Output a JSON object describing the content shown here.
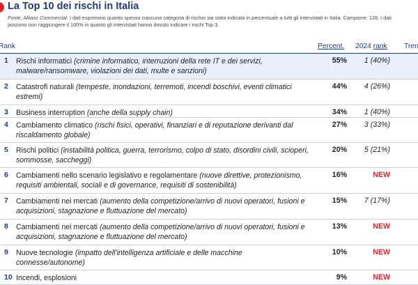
{
  "title": "La Top 10 dei rischi in Italia",
  "source": {
    "label": "Fonte: Allianz Commercial.",
    "text": " I dati esprimono quanto spesso ciascuna categoria di rischio sia stata indicata in percentuale a tutti gli intervistati in Italia.  Campione: 128. I dati possono non raggiungere il 100% in quanto gli intervistati hanno dovuto indicare i rischi Top 3."
  },
  "headers": {
    "rank": "Rank",
    "percent": "Percent.",
    "prev_year": "2024 ",
    "prev_rank": "rank",
    "trend": "Trend"
  },
  "colors": {
    "accent": "#1f3b73",
    "new_badge": "#e0202a",
    "title_dot": "#d62b2b",
    "highlight_row": "#e9f0fa"
  },
  "rows": [
    {
      "num": "1",
      "name": "Rischi informatici ",
      "detail": "(crimine informatico, interruzioni della rete IT e dei servizi, malware/ransomware, violazioni dei dati, multe e sanzioni)",
      "percent": "55%",
      "prev": "1 (40%)"
    },
    {
      "num": "2",
      "name": "Catastrofi naturali ",
      "detail": "(tempeste, inondazioni, terremoti, incendi boschivi, eventi climatici estremi)",
      "percent": "44%",
      "prev": "4 (26%)"
    },
    {
      "num": "3",
      "name": "Business interruption ",
      "detail": "(anche della supply chain)",
      "percent": "34%",
      "prev": "1 (40%)"
    },
    {
      "num": "4",
      "name": "Cambiamento climatico ",
      "detail": "(rischi fisici, operativi, finanziari e di reputazione derivanti dal riscaldamento globale)",
      "percent": "27%",
      "prev": "3 (33%)"
    },
    {
      "num": "5",
      "name": "Rischi politici ",
      "detail": "(instabilità politica, guerra, terrorismo, colpo di stato, disordini civili, scioperi, sommosse, saccheggi)",
      "percent": "20%",
      "prev": "5 (21%)"
    },
    {
      "num": "6",
      "name": "Cambiamenti nello scenario legislativo e regolamentare ",
      "detail": "(nuove direttive, protezionismo, requisiti ambientali, sociali e di governance, requisiti di sostenibilità)",
      "percent": "16%",
      "prev": "NEW"
    },
    {
      "num": "7",
      "name": "Cambiamenti nei mercati ",
      "detail": "(aumento della competizione/arrivo di nuovi operatori, fusioni e acquisizioni, stagnazione e fluttuazione del mercato)",
      "percent": "15%",
      "prev": "7 (17%)"
    },
    {
      "num": "8",
      "name": "Cambiamenti nei mercati ",
      "detail": "(aumento della competizione/arrivo di nuovi operatori, fusioni e acquisizioni, stagnazione e fluttuazione del mercato)",
      "percent": "13%",
      "prev": "NEW"
    },
    {
      "num": "9",
      "name": "Nuove tecnologie ",
      "detail": "(impatto dell'intelligenza artificiale e delle macchine connesse/autonome)",
      "percent": "10%",
      "prev": "NEW"
    },
    {
      "num": "10",
      "name": "Incendi, esplosioni",
      "detail": "",
      "percent": "9%",
      "prev": "NEW"
    }
  ]
}
